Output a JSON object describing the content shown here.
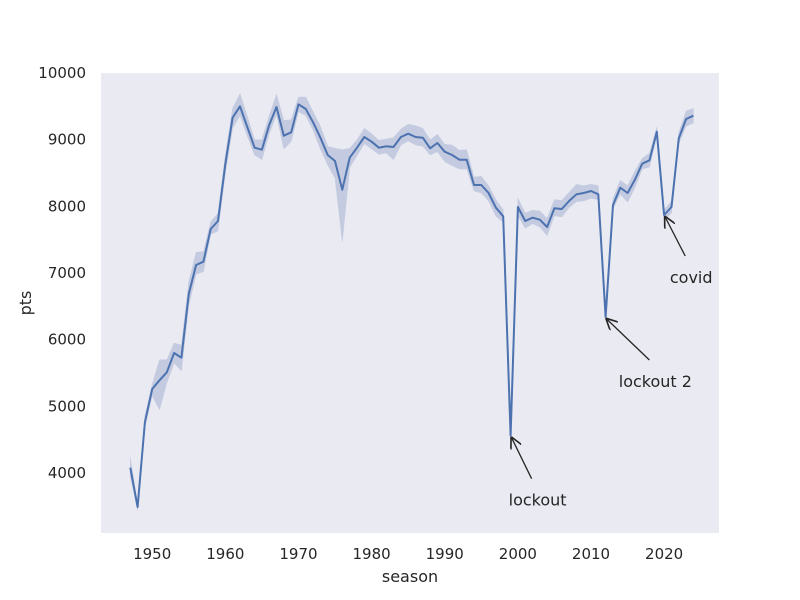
{
  "chart_data": {
    "type": "line",
    "title": "",
    "xlabel": "season",
    "ylabel": "pts",
    "xlim": [
      1943,
      2027.5
    ],
    "ylim": [
      3100,
      10000
    ],
    "grid": false,
    "background_color": "#eaeaf2",
    "line_color": "#4c72b0",
    "band_color": "#c4cbe0",
    "x_ticks": [
      1950,
      1960,
      1970,
      1980,
      1990,
      2000,
      2010,
      2020
    ],
    "y_ticks": [
      4000,
      5000,
      6000,
      7000,
      8000,
      9000,
      10000
    ],
    "series": [
      {
        "x": [
          1947,
          1948,
          1949,
          1950,
          1951,
          1952,
          1953,
          1954,
          1955,
          1956,
          1957,
          1958,
          1959,
          1960,
          1961,
          1962,
          1963,
          1964,
          1965,
          1966,
          1967,
          1968,
          1969,
          1970,
          1971,
          1972,
          1973,
          1974,
          1975,
          1976,
          1977,
          1978,
          1979,
          1980,
          1981,
          1982,
          1983,
          1984,
          1985,
          1986,
          1987,
          1988,
          1989,
          1990,
          1991,
          1992,
          1993,
          1994,
          1995,
          1996,
          1997,
          1998,
          1999,
          2000,
          2001,
          2002,
          2003,
          2004,
          2005,
          2006,
          2007,
          2008,
          2009,
          2010,
          2011,
          2012,
          2013,
          2014,
          2015,
          2016,
          2017,
          2018,
          2019,
          2020,
          2021,
          2022,
          2023,
          2024
        ],
        "values": [
          4080,
          3490,
          4760,
          5260,
          5390,
          5510,
          5800,
          5730,
          6690,
          7120,
          7170,
          7660,
          7780,
          8630,
          9330,
          9500,
          9190,
          8880,
          8850,
          9220,
          9490,
          9060,
          9110,
          9530,
          9460,
          9260,
          9030,
          8770,
          8680,
          8250,
          8730,
          8880,
          9040,
          8970,
          8880,
          8900,
          8890,
          9040,
          9090,
          9040,
          9030,
          8870,
          8950,
          8820,
          8770,
          8700,
          8700,
          8320,
          8320,
          8200,
          7980,
          7850,
          4560,
          7990,
          7780,
          7830,
          7800,
          7690,
          7970,
          7960,
          8080,
          8180,
          8200,
          8230,
          8180,
          6340,
          8020,
          8280,
          8200,
          8400,
          8640,
          8690,
          9120,
          7870,
          7990,
          9020,
          9310,
          9360
        ],
        "lower": [
          3950,
          3440,
          4680,
          5160,
          4950,
          5350,
          5650,
          5530,
          6510,
          6980,
          7020,
          7580,
          7630,
          8490,
          9170,
          9360,
          9050,
          8770,
          8700,
          9090,
          9370,
          8860,
          8970,
          9420,
          9360,
          9140,
          8860,
          8620,
          8420,
          7470,
          8580,
          8760,
          8940,
          8860,
          8780,
          8800,
          8700,
          8920,
          8980,
          8920,
          8900,
          8770,
          8820,
          8670,
          8610,
          8560,
          8560,
          8230,
          8200,
          8080,
          7850,
          7760,
          4480,
          7860,
          7670,
          7740,
          7690,
          7560,
          7860,
          7840,
          7980,
          8070,
          8080,
          8120,
          8100,
          6320,
          7960,
          8180,
          8060,
          8280,
          8560,
          8590,
          9050,
          7790,
          7900,
          8940,
          9200,
          9250
        ],
        "upper": [
          4230,
          3540,
          4860,
          5330,
          5700,
          5700,
          5950,
          5920,
          6870,
          7310,
          7320,
          7770,
          7900,
          8770,
          9470,
          9690,
          9350,
          9000,
          9000,
          9360,
          9680,
          9290,
          9300,
          9640,
          9640,
          9420,
          9200,
          8900,
          8870,
          8850,
          8870,
          9000,
          9170,
          9090,
          8990,
          9010,
          9030,
          9160,
          9230,
          9210,
          9170,
          9000,
          9080,
          8930,
          8920,
          8840,
          8850,
          8440,
          8450,
          8310,
          8100,
          7950,
          4640,
          8120,
          7900,
          7940,
          7930,
          7820,
          8100,
          8090,
          8210,
          8330,
          8310,
          8330,
          8310,
          6370,
          8120,
          8390,
          8310,
          8530,
          8720,
          8800,
          9190,
          7950,
          8080,
          9110,
          9430,
          9470
        ]
      }
    ],
    "annotations": [
      {
        "text": "lockout",
        "point": [
          1999,
          4560
        ],
        "text_at": [
          2002.7,
          3600
        ]
      },
      {
        "text": "lockout 2",
        "point": [
          2012,
          6340
        ],
        "text_at": [
          2018.8,
          5380
        ]
      },
      {
        "text": "covid",
        "point": [
          2020,
          7870
        ],
        "text_at": [
          2023.7,
          6940
        ]
      }
    ]
  }
}
